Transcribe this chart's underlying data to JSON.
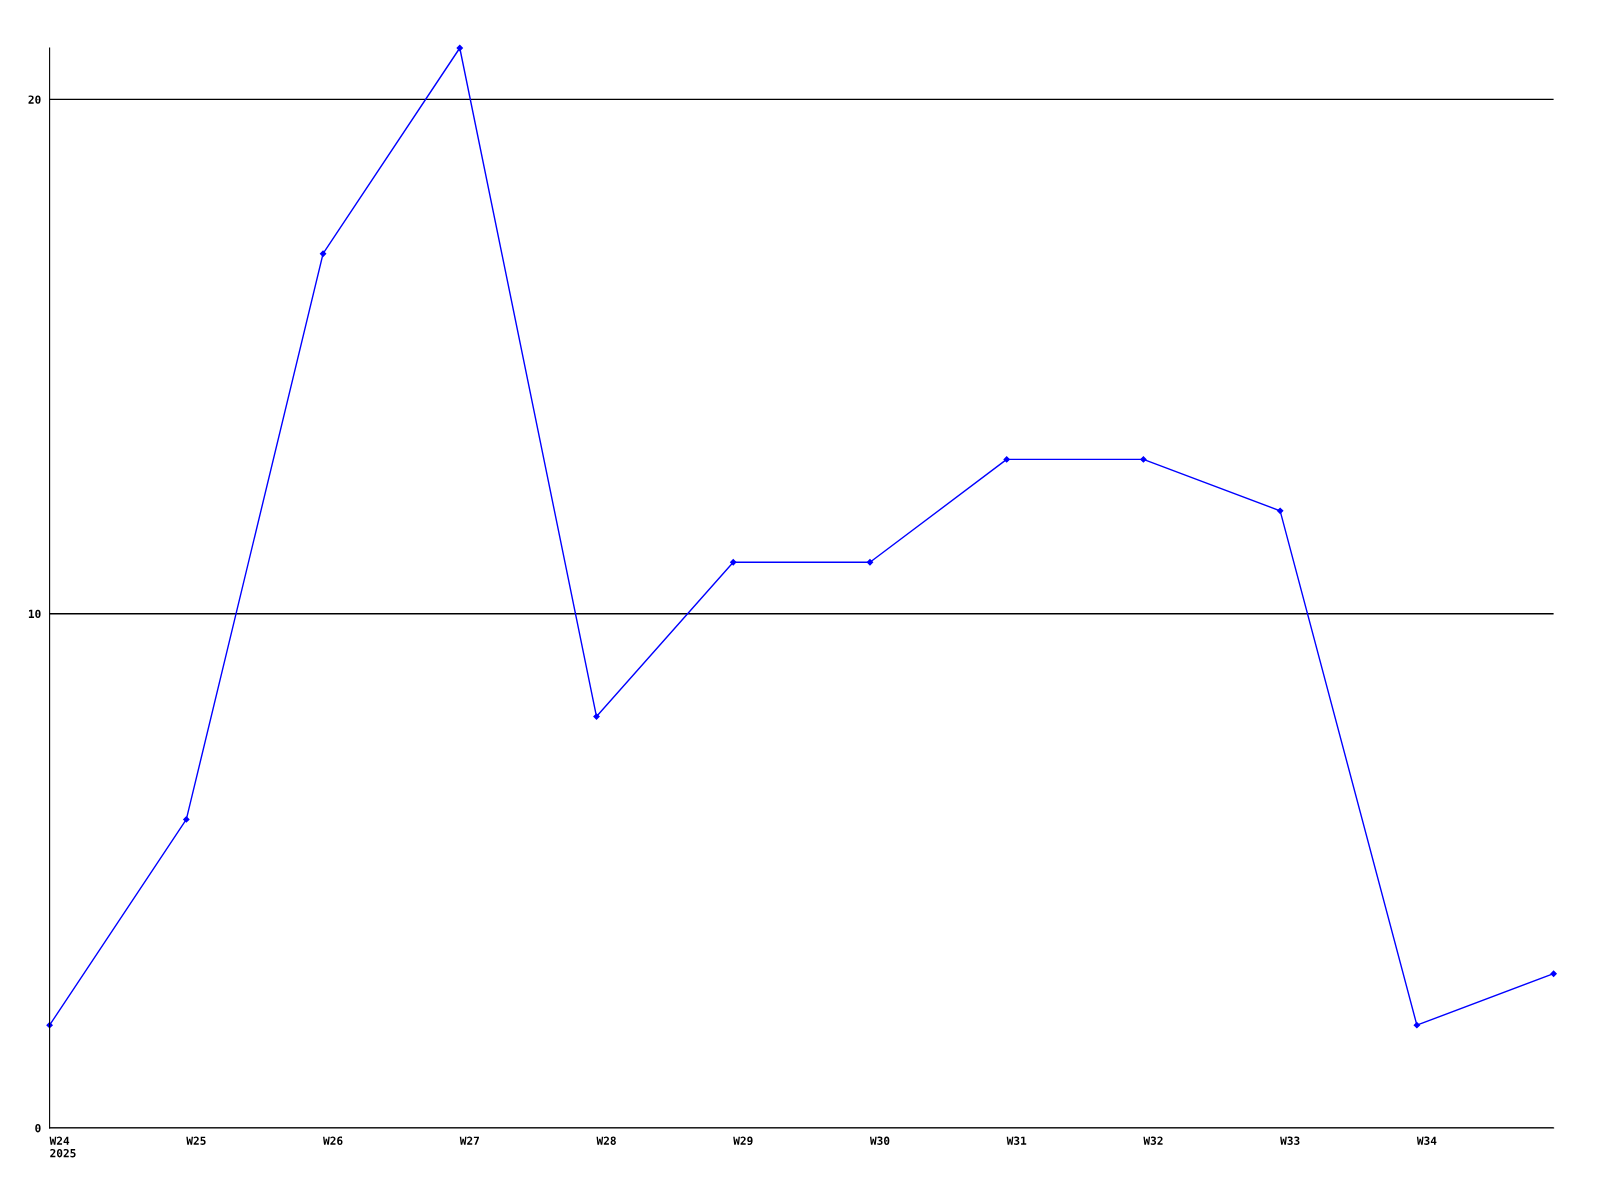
{
  "chart_data": {
    "type": "line",
    "categories": [
      "W24\n2025",
      "W25",
      "W26",
      "W27",
      "W28",
      "W29",
      "W30",
      "W31",
      "W32",
      "W33",
      "W34",
      null
    ],
    "series": [
      {
        "color": "#0000ff",
        "values": [
          2,
          6,
          17,
          21,
          8,
          11,
          11,
          13,
          13,
          12,
          2,
          3
        ]
      }
    ],
    "ylim": [
      0,
      21
    ],
    "yticks": [
      0,
      10,
      20
    ],
    "grid": "y",
    "marker": "diamond",
    "line_style": "solid",
    "legend": false
  }
}
